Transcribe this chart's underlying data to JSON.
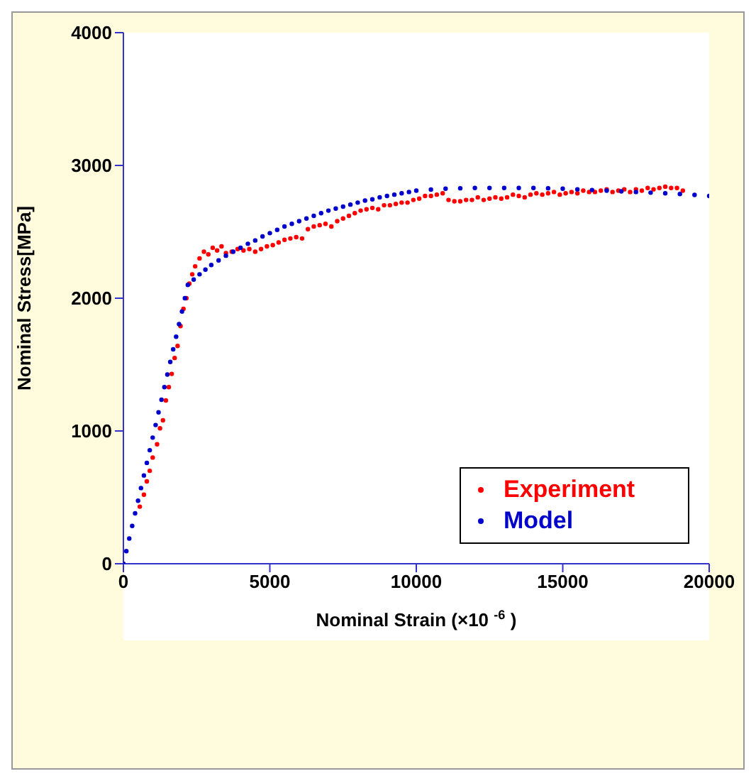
{
  "chart_data": {
    "type": "scatter",
    "xlabel": "Nominal Strain (×10 $^{-6}$)",
    "ylabel": "Nominal Stress[MPa]",
    "xlim": [
      0,
      20000
    ],
    "xticks": [
      0,
      5000,
      10000,
      15000,
      20000
    ],
    "ylim": [
      0,
      4000
    ],
    "yticks": [
      0,
      1000,
      2000,
      3000,
      4000
    ],
    "grid": false,
    "legend": "right",
    "marker": "circle",
    "series": [
      {
        "name": "Experiment",
        "color": "#ff0000",
        "x": [
          560,
          700,
          800,
          900,
          1000,
          1150,
          1250,
          1350,
          1450,
          1550,
          1650,
          1750,
          1850,
          1950,
          2050,
          2150,
          2250,
          2350,
          2450,
          2600,
          2750,
          2900,
          3050,
          3200,
          3350,
          3500,
          3700,
          3900,
          4100,
          4300,
          4500,
          4700,
          4900,
          5100,
          5300,
          5500,
          5700,
          5900,
          6100,
          6300,
          6500,
          6700,
          6900,
          7100,
          7300,
          7500,
          7700,
          7900,
          8100,
          8300,
          8500,
          8700,
          8900,
          9100,
          9300,
          9500,
          9700,
          9900,
          10100,
          10300,
          10500,
          10700,
          10900,
          11100,
          11300,
          11500,
          11700,
          11900,
          12100,
          12300,
          12500,
          12700,
          12900,
          13100,
          13300,
          13500,
          13700,
          13900,
          14100,
          14300,
          14500,
          14700,
          14900,
          15100,
          15300,
          15500,
          15700,
          15900,
          16100,
          16300,
          16500,
          16700,
          16900,
          17100,
          17300,
          17500,
          17700,
          17900,
          18100,
          18300,
          18500,
          18700,
          18900,
          19100
        ],
        "values": [
          430,
          520,
          620,
          700,
          800,
          900,
          1020,
          1080,
          1230,
          1330,
          1430,
          1550,
          1640,
          1790,
          1920,
          2000,
          2110,
          2180,
          2240,
          2300,
          2350,
          2330,
          2380,
          2360,
          2390,
          2340,
          2350,
          2370,
          2360,
          2370,
          2350,
          2370,
          2390,
          2400,
          2420,
          2440,
          2450,
          2460,
          2450,
          2520,
          2540,
          2550,
          2560,
          2540,
          2580,
          2600,
          2620,
          2640,
          2660,
          2670,
          2680,
          2670,
          2700,
          2700,
          2710,
          2720,
          2720,
          2740,
          2750,
          2770,
          2770,
          2780,
          2790,
          2740,
          2730,
          2730,
          2740,
          2740,
          2760,
          2740,
          2750,
          2760,
          2750,
          2760,
          2780,
          2770,
          2760,
          2780,
          2790,
          2780,
          2790,
          2800,
          2780,
          2790,
          2800,
          2790,
          2810,
          2800,
          2800,
          2810,
          2820,
          2800,
          2810,
          2820,
          2800,
          2820,
          2810,
          2830,
          2820,
          2830,
          2840,
          2830,
          2830,
          2810
        ]
      },
      {
        "name": "Model",
        "color": "#0000cc",
        "x": [
          0,
          100,
          200,
          300,
          400,
          500,
          600,
          700,
          800,
          900,
          1000,
          1100,
          1200,
          1300,
          1400,
          1500,
          1600,
          1700,
          1800,
          1900,
          2000,
          2100,
          2200,
          2400,
          2600,
          2800,
          3000,
          3250,
          3500,
          3750,
          4000,
          4250,
          4500,
          4750,
          5000,
          5250,
          5500,
          5750,
          6000,
          6250,
          6500,
          6750,
          7000,
          7250,
          7500,
          7750,
          8000,
          8250,
          8500,
          8750,
          9000,
          9250,
          9500,
          9750,
          10000,
          10500,
          11000,
          11500,
          12000,
          12500,
          13000,
          13500,
          14000,
          14500,
          15000,
          15500,
          16000,
          16500,
          17000,
          17500,
          18000,
          18500,
          19000,
          19500,
          20000
        ],
        "values": [
          0,
          95,
          190,
          285,
          380,
          475,
          570,
          665,
          760,
          855,
          950,
          1045,
          1140,
          1235,
          1330,
          1425,
          1520,
          1615,
          1710,
          1805,
          1900,
          2000,
          2100,
          2140,
          2180,
          2215,
          2250,
          2285,
          2320,
          2350,
          2380,
          2410,
          2435,
          2465,
          2490,
          2515,
          2540,
          2560,
          2580,
          2600,
          2620,
          2640,
          2660,
          2675,
          2690,
          2705,
          2720,
          2735,
          2745,
          2760,
          2770,
          2780,
          2790,
          2800,
          2810,
          2818,
          2825,
          2828,
          2830,
          2830,
          2830,
          2830,
          2830,
          2828,
          2825,
          2820,
          2815,
          2810,
          2805,
          2800,
          2795,
          2790,
          2785,
          2778,
          2770
        ]
      }
    ]
  }
}
